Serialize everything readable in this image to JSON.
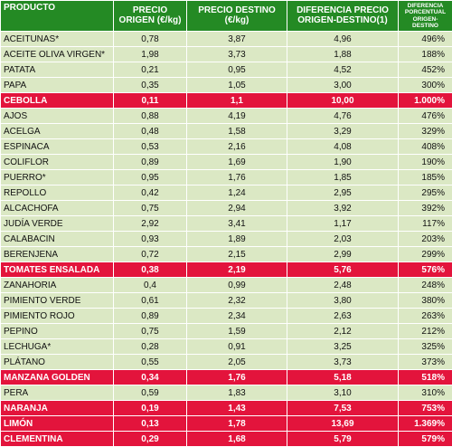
{
  "headers": [
    "PRODUCTO",
    "PRECIO ORIGEN (€/kg)",
    "PRECIO DESTINO (€/kg)",
    "DIFERENCIA PRECIO ORIGEN-DESTINO(1)",
    "DIFERENCIA PORCENTUAL ORIGEN-DESTINO"
  ],
  "colors": {
    "header_bg": "#248a24",
    "row_bg": "#dbe8c4",
    "highlight_bg": "#e3143c"
  },
  "rows": [
    {
      "producto": "ACEITUNAS*",
      "origen": "0,78",
      "destino": "3,87",
      "diferencia": "4,96",
      "porcentaje": "496%",
      "highlight": false
    },
    {
      "producto": "ACEITE OLIVA VIRGEN*",
      "origen": "1,98",
      "destino": "3,73",
      "diferencia": "1,88",
      "porcentaje": "188%",
      "highlight": false
    },
    {
      "producto": "PATATA",
      "origen": "0,21",
      "destino": "0,95",
      "diferencia": "4,52",
      "porcentaje": "452%",
      "highlight": false
    },
    {
      "producto": "PAPA",
      "origen": "0,35",
      "destino": "1,05",
      "diferencia": "3,00",
      "porcentaje": "300%",
      "highlight": false
    },
    {
      "producto": "CEBOLLA",
      "origen": "0,11",
      "destino": "1,1",
      "diferencia": "10,00",
      "porcentaje": "1.000%",
      "highlight": true
    },
    {
      "producto": "AJOS",
      "origen": "0,88",
      "destino": "4,19",
      "diferencia": "4,76",
      "porcentaje": "476%",
      "highlight": false
    },
    {
      "producto": "ACELGA",
      "origen": "0,48",
      "destino": "1,58",
      "diferencia": "3,29",
      "porcentaje": "329%",
      "highlight": false
    },
    {
      "producto": "ESPINACA",
      "origen": "0,53",
      "destino": "2,16",
      "diferencia": "4,08",
      "porcentaje": "408%",
      "highlight": false
    },
    {
      "producto": "COLIFLOR",
      "origen": "0,89",
      "destino": "1,69",
      "diferencia": "1,90",
      "porcentaje": "190%",
      "highlight": false
    },
    {
      "producto": "PUERRO*",
      "origen": "0,95",
      "destino": "1,76",
      "diferencia": "1,85",
      "porcentaje": "185%",
      "highlight": false
    },
    {
      "producto": "REPOLLO",
      "origen": "0,42",
      "destino": "1,24",
      "diferencia": "2,95",
      "porcentaje": "295%",
      "highlight": false
    },
    {
      "producto": "ALCACHOFA",
      "origen": "0,75",
      "destino": "2,94",
      "diferencia": "3,92",
      "porcentaje": "392%",
      "highlight": false
    },
    {
      "producto": "JUDÍA VERDE",
      "origen": "2,92",
      "destino": "3,41",
      "diferencia": "1,17",
      "porcentaje": "117%",
      "highlight": false
    },
    {
      "producto": "CALABACIN",
      "origen": "0,93",
      "destino": "1,89",
      "diferencia": "2,03",
      "porcentaje": "203%",
      "highlight": false
    },
    {
      "producto": "BERENJENA",
      "origen": "0,72",
      "destino": "2,15",
      "diferencia": "2,99",
      "porcentaje": "299%",
      "highlight": false
    },
    {
      "producto": "TOMATES ENSALADA",
      "origen": "0,38",
      "destino": "2,19",
      "diferencia": "5,76",
      "porcentaje": "576%",
      "highlight": true
    },
    {
      "producto": "ZANAHORIA",
      "origen": "0,4",
      "destino": "0,99",
      "diferencia": "2,48",
      "porcentaje": "248%",
      "highlight": false
    },
    {
      "producto": "PIMIENTO VERDE",
      "origen": "0,61",
      "destino": "2,32",
      "diferencia": "3,80",
      "porcentaje": "380%",
      "highlight": false
    },
    {
      "producto": "PIMIENTO ROJO",
      "origen": "0,89",
      "destino": "2,34",
      "diferencia": "2,63",
      "porcentaje": "263%",
      "highlight": false
    },
    {
      "producto": "PEPINO",
      "origen": "0,75",
      "destino": "1,59",
      "diferencia": "2,12",
      "porcentaje": "212%",
      "highlight": false
    },
    {
      "producto": "LECHUGA*",
      "origen": "0,28",
      "destino": "0,91",
      "diferencia": "3,25",
      "porcentaje": "325%",
      "highlight": false
    },
    {
      "producto": "PLÁTANO",
      "origen": "0,55",
      "destino": "2,05",
      "diferencia": "3,73",
      "porcentaje": "373%",
      "highlight": false
    },
    {
      "producto": "MANZANA GOLDEN",
      "origen": "0,34",
      "destino": "1,76",
      "diferencia": "5,18",
      "porcentaje": "518%",
      "highlight": true
    },
    {
      "producto": "PERA",
      "origen": "0,59",
      "destino": "1,83",
      "diferencia": "3,10",
      "porcentaje": "310%",
      "highlight": false
    },
    {
      "producto": "NARANJA",
      "origen": "0,19",
      "destino": "1,43",
      "diferencia": "7,53",
      "porcentaje": "753%",
      "highlight": true
    },
    {
      "producto": "LIMÓN",
      "origen": "0,13",
      "destino": "1,78",
      "diferencia": "13,69",
      "porcentaje": "1.369%",
      "highlight": true
    },
    {
      "producto": "CLEMENTINA",
      "origen": "0,29",
      "destino": "1,68",
      "diferencia": "5,79",
      "porcentaje": "579%",
      "highlight": true
    }
  ]
}
